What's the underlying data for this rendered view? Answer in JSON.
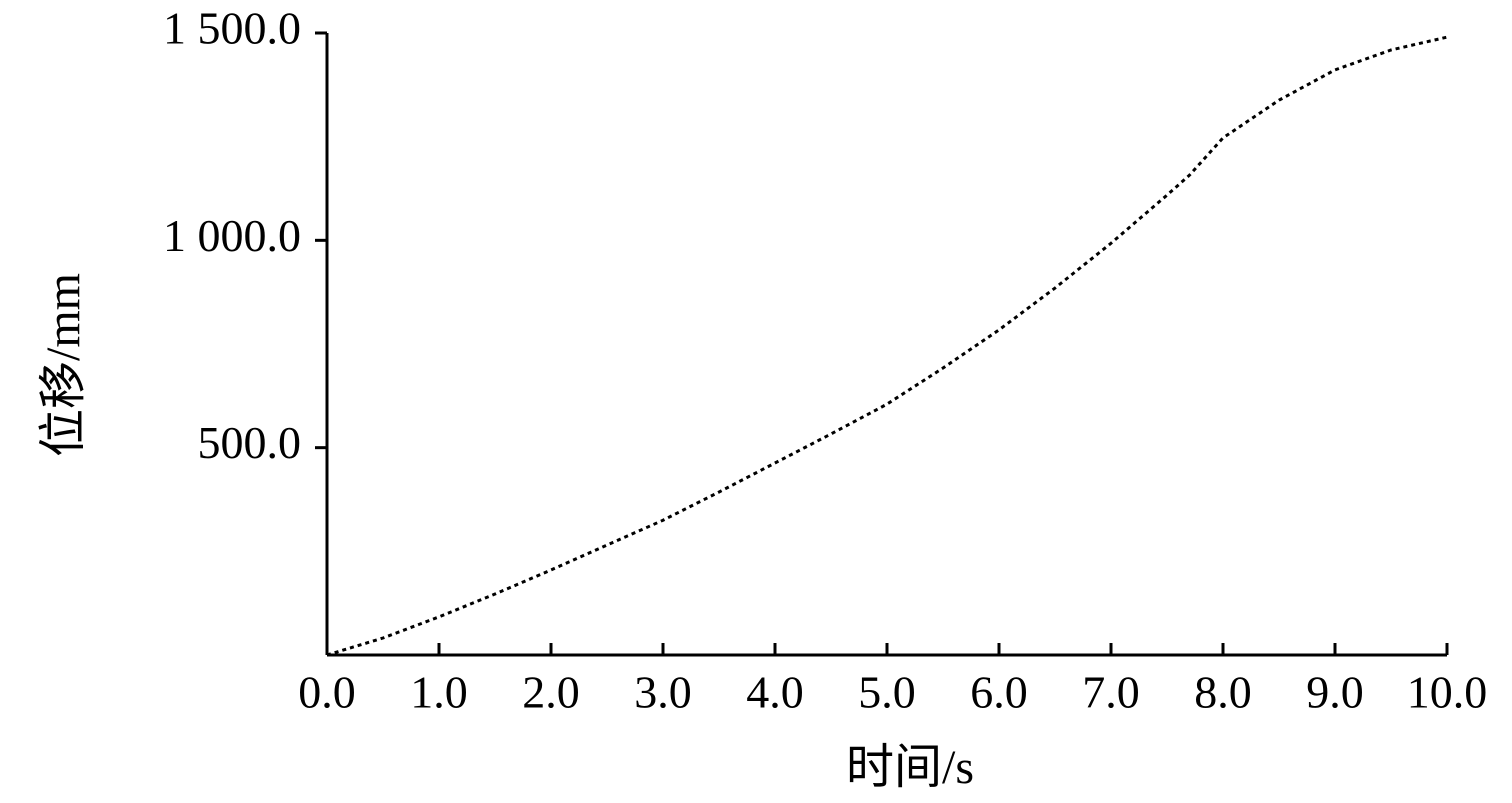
{
  "chart_data": {
    "type": "line",
    "x_label": "时间/s",
    "y_label": "位移/mm",
    "x": [
      0,
      0.5,
      1,
      1.5,
      2,
      2.5,
      3,
      3.5,
      4,
      4.5,
      5,
      5.5,
      6,
      6.5,
      7,
      7.5,
      7.7,
      8,
      8.5,
      9,
      9.5,
      10
    ],
    "series": [
      {
        "color": "#000000",
        "values": [
          0,
          41,
          92,
          147,
          205,
          265,
          325,
          393,
          463,
          533,
          605,
          692,
          784,
          885,
          993,
          1109,
          1157,
          1247,
          1338,
          1411,
          1459,
          1490
        ]
      }
    ],
    "xlim": [
      0,
      10
    ],
    "ylim": [
      0,
      1500
    ],
    "xticks": [
      {
        "value": 0,
        "label": "0.0"
      },
      {
        "value": 1,
        "label": "1.0"
      },
      {
        "value": 2,
        "label": "2.0"
      },
      {
        "value": 3,
        "label": "3.0"
      },
      {
        "value": 4,
        "label": "4.0"
      },
      {
        "value": 5,
        "label": "5.0"
      },
      {
        "value": 6,
        "label": "6.0"
      },
      {
        "value": 7,
        "label": "7.0"
      },
      {
        "value": 8,
        "label": "8.0"
      },
      {
        "value": 9,
        "label": "9.0"
      },
      {
        "value": 10,
        "label": "10.0"
      }
    ],
    "yticks": [
      {
        "value": 500,
        "label": "500.0"
      },
      {
        "value": 1000,
        "label": "1 000.0"
      },
      {
        "value": 1500,
        "label": "1 500.0"
      }
    ],
    "line_style": "dotted"
  }
}
